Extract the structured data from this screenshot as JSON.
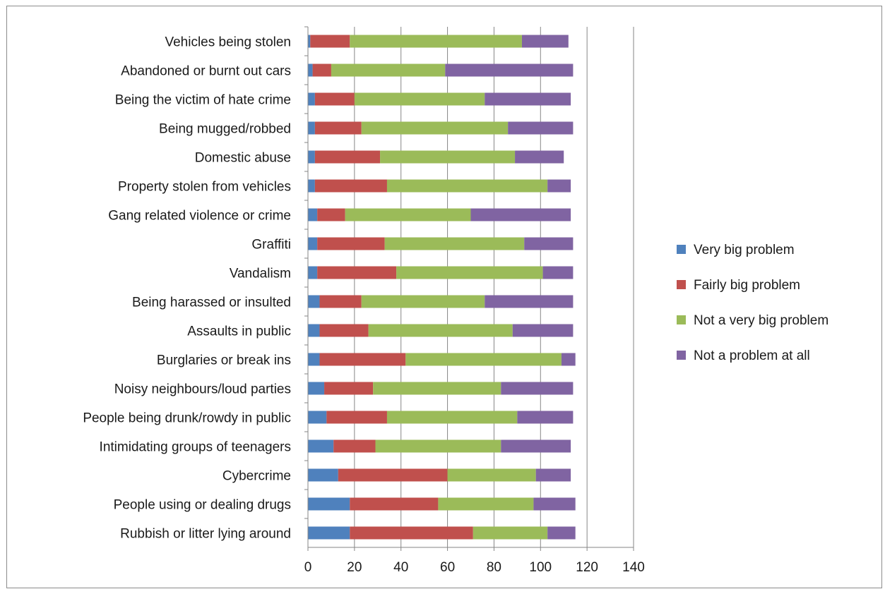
{
  "chart_data": {
    "type": "bar",
    "orientation": "horizontal",
    "stacked": true,
    "categories": [
      "Vehicles being stolen",
      "Abandoned or burnt out cars",
      "Being the victim of hate crime",
      "Being mugged/robbed",
      "Domestic abuse",
      "Property stolen from vehicles",
      "Gang related violence or crime",
      "Graffiti",
      "Vandalism",
      "Being harassed or insulted",
      "Assaults in public",
      "Burglaries or break ins",
      "Noisy neighbours/loud parties",
      "People being drunk/rowdy in public",
      "Intimidating groups of teenagers",
      "Cybercrime",
      "People using or dealing drugs",
      "Rubbish or litter lying around"
    ],
    "series": [
      {
        "name": "Very big problem",
        "color": "#4f81bd",
        "values": [
          1,
          2,
          3,
          3,
          3,
          3,
          4,
          4,
          4,
          5,
          5,
          5,
          7,
          8,
          11,
          13,
          18,
          18
        ]
      },
      {
        "name": "Fairly big problem",
        "color": "#c0504d",
        "values": [
          17,
          8,
          17,
          20,
          28,
          31,
          12,
          29,
          34,
          18,
          21,
          37,
          21,
          26,
          18,
          47,
          38,
          53
        ]
      },
      {
        "name": "Not a very big problem",
        "color": "#9bbb59",
        "values": [
          74,
          49,
          56,
          63,
          58,
          69,
          54,
          60,
          63,
          53,
          62,
          67,
          55,
          56,
          54,
          38,
          41,
          32
        ]
      },
      {
        "name": "Not a problem at all",
        "color": "#8064a2",
        "values": [
          20,
          55,
          37,
          28,
          21,
          10,
          43,
          21,
          13,
          38,
          26,
          6,
          31,
          24,
          30,
          15,
          18,
          12
        ]
      }
    ],
    "xlim": [
      0,
      140
    ],
    "xticks": [
      0,
      20,
      40,
      60,
      80,
      100,
      120,
      140
    ],
    "grid": "vertical",
    "legend_position": "right",
    "title": "",
    "xlabel": "",
    "ylabel": ""
  }
}
